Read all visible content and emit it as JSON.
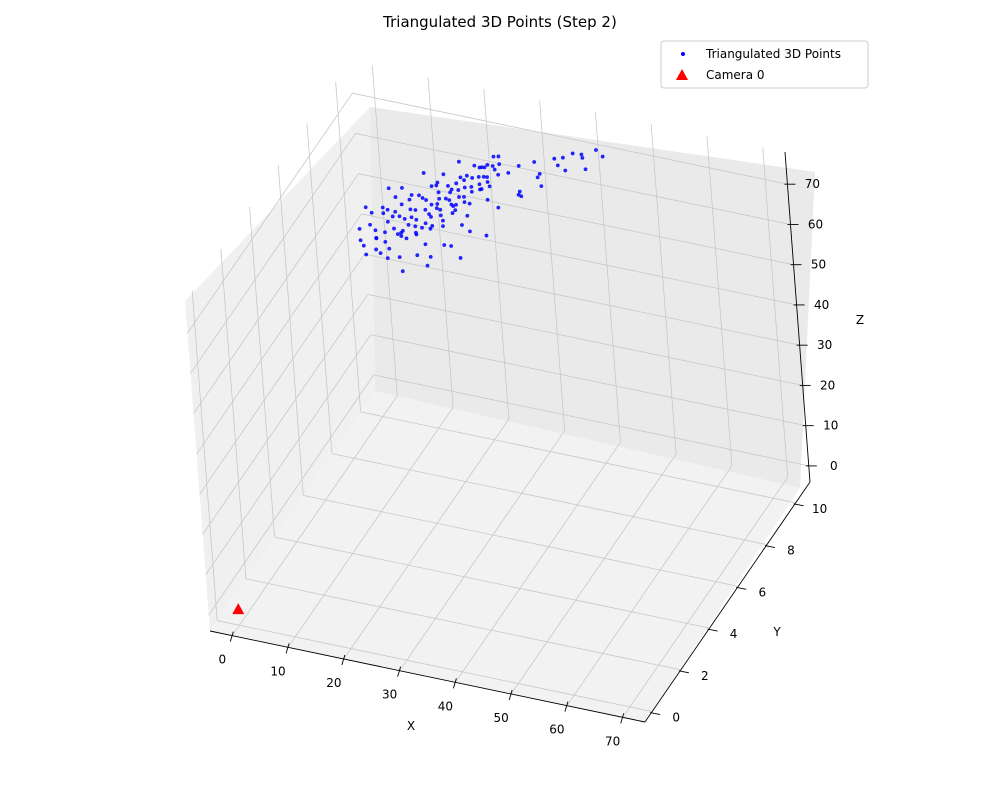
{
  "chart_data": {
    "type": "scatter",
    "projection": "3d",
    "title": "Triangulated 3D Points (Step 2)",
    "xlabel": "X",
    "ylabel": "Y",
    "zlabel": "Z",
    "xlim": [
      -4,
      74
    ],
    "ylim": [
      -0.5,
      11
    ],
    "zlim": [
      -4,
      78
    ],
    "xticks": [
      0,
      10,
      20,
      30,
      40,
      50,
      60,
      70
    ],
    "yticks": [
      0,
      2,
      4,
      6,
      8,
      10
    ],
    "zticks": [
      0,
      10,
      20,
      30,
      40,
      50,
      60,
      70
    ],
    "grid": true,
    "legend_position": "top-right",
    "series": [
      {
        "name": "Triangulated 3D Points",
        "color": "#0000ff",
        "marker": "point",
        "points": [
          [
            5.0,
            7.7,
            56.0
          ],
          [
            5.4,
            8.4,
            56.5
          ],
          [
            5.9,
            7.4,
            55.0
          ],
          [
            6.1,
            8.0,
            55.8
          ],
          [
            6.7,
            7.3,
            54.4
          ],
          [
            6.9,
            8.6,
            57.2
          ],
          [
            7.3,
            7.9,
            55.3
          ],
          [
            7.6,
            7.1,
            53.5
          ],
          [
            7.8,
            8.3,
            57.6
          ],
          [
            8.2,
            7.6,
            55.2
          ],
          [
            8.5,
            8.9,
            58.7
          ],
          [
            8.9,
            7.3,
            54.1
          ],
          [
            9.1,
            8.1,
            56.9
          ],
          [
            9.3,
            7.8,
            55.9
          ],
          [
            9.7,
            8.4,
            58.0
          ],
          [
            10.1,
            7.5,
            55.3
          ],
          [
            10.4,
            8.6,
            59.0
          ],
          [
            10.7,
            7.9,
            56.7
          ],
          [
            11.0,
            8.2,
            58.3
          ],
          [
            11.3,
            7.3,
            55.0
          ],
          [
            11.6,
            8.7,
            60.0
          ],
          [
            11.9,
            7.7,
            56.7
          ],
          [
            12.2,
            8.1,
            58.5
          ],
          [
            12.5,
            8.4,
            59.4
          ],
          [
            12.8,
            7.6,
            57.0
          ],
          [
            13.1,
            8.8,
            61.0
          ],
          [
            13.4,
            7.9,
            58.4
          ],
          [
            13.7,
            8.3,
            60.1
          ],
          [
            14.0,
            7.5,
            57.3
          ],
          [
            14.3,
            8.6,
            61.7
          ],
          [
            14.6,
            8.0,
            59.5
          ],
          [
            14.9,
            7.8,
            59.0
          ],
          [
            15.2,
            8.5,
            62.0
          ],
          [
            15.5,
            7.6,
            58.6
          ],
          [
            15.8,
            8.2,
            61.3
          ],
          [
            16.1,
            8.9,
            63.8
          ],
          [
            16.4,
            7.7,
            59.6
          ],
          [
            16.7,
            8.3,
            62.3
          ],
          [
            17.0,
            8.0,
            61.6
          ],
          [
            17.3,
            8.6,
            64.0
          ],
          [
            17.6,
            7.9,
            61.6
          ],
          [
            17.9,
            8.4,
            63.6
          ],
          [
            18.2,
            8.1,
            62.9
          ],
          [
            18.5,
            7.5,
            61.0
          ],
          [
            18.8,
            8.7,
            65.5
          ],
          [
            19.1,
            8.0,
            63.3
          ],
          [
            19.4,
            8.3,
            64.6
          ],
          [
            19.7,
            7.8,
            63.1
          ],
          [
            20.0,
            8.5,
            66.0
          ],
          [
            20.3,
            8.2,
            65.0
          ],
          [
            20.6,
            7.6,
            63.1
          ],
          [
            20.9,
            8.8,
            67.7
          ],
          [
            21.2,
            8.0,
            65.2
          ],
          [
            21.5,
            8.4,
            66.8
          ],
          [
            21.8,
            7.9,
            65.5
          ],
          [
            22.1,
            8.6,
            68.4
          ],
          [
            22.4,
            8.1,
            66.9
          ],
          [
            22.7,
            7.7,
            65.8
          ],
          [
            23.0,
            8.3,
            68.4
          ],
          [
            23.3,
            8.9,
            70.8
          ],
          [
            23.6,
            8.0,
            67.8
          ],
          [
            23.9,
            8.5,
            70.0
          ],
          [
            24.2,
            7.8,
            67.7
          ],
          [
            24.5,
            8.2,
            69.5
          ],
          [
            24.8,
            8.7,
            71.8
          ],
          [
            25.1,
            8.0,
            69.5
          ],
          [
            25.4,
            8.4,
            71.2
          ],
          [
            25.7,
            7.6,
            68.8
          ],
          [
            26.0,
            8.6,
            72.7
          ],
          [
            26.3,
            8.1,
            71.2
          ],
          [
            26.6,
            8.3,
            72.1
          ],
          [
            26.9,
            7.9,
            71.1
          ],
          [
            27.2,
            8.8,
            74.7
          ],
          [
            27.5,
            8.2,
            72.8
          ],
          [
            27.8,
            8.5,
            74.1
          ],
          [
            28.1,
            8.0,
            72.8
          ],
          [
            28.4,
            8.7,
            75.6
          ],
          [
            28.7,
            8.3,
            74.5
          ],
          [
            29.0,
            7.8,
            73.0
          ],
          [
            29.3,
            8.4,
            75.5
          ],
          [
            9.5,
            8.0,
            60.5
          ],
          [
            11.5,
            7.6,
            61.5
          ],
          [
            13.5,
            8.2,
            64.3
          ],
          [
            15.5,
            7.4,
            63.5
          ],
          [
            17.5,
            8.5,
            67.0
          ],
          [
            19.5,
            7.7,
            66.4
          ],
          [
            21.5,
            8.3,
            69.0
          ],
          [
            23.5,
            7.5,
            68.4
          ],
          [
            25.5,
            8.6,
            72.6
          ],
          [
            27.5,
            7.8,
            71.9
          ],
          [
            6.5,
            8.2,
            51.5
          ],
          [
            8.5,
            7.7,
            51.0
          ],
          [
            10.5,
            8.4,
            53.0
          ],
          [
            12.5,
            7.5,
            52.2
          ],
          [
            14.5,
            8.6,
            55.5
          ],
          [
            16.5,
            7.8,
            55.0
          ],
          [
            18.5,
            8.3,
            57.5
          ],
          [
            20.5,
            7.6,
            57.0
          ],
          [
            22.5,
            8.5,
            60.2
          ],
          [
            24.5,
            7.9,
            60.0
          ],
          [
            7.0,
            7.5,
            63.0
          ],
          [
            10.0,
            8.0,
            66.0
          ],
          [
            13.0,
            7.8,
            68.0
          ],
          [
            16.0,
            8.2,
            70.5
          ],
          [
            19.0,
            7.6,
            71.2
          ],
          [
            22.0,
            8.4,
            74.0
          ],
          [
            25.0,
            7.8,
            74.5
          ],
          [
            28.0,
            8.1,
            76.5
          ],
          [
            31.0,
            7.7,
            77.0
          ],
          [
            34.0,
            8.0,
            78.5
          ],
          [
            14.0,
            8.1,
            50.0
          ],
          [
            17.0,
            7.9,
            51.5
          ],
          [
            20.0,
            8.2,
            53.5
          ],
          [
            23.0,
            7.7,
            54.0
          ],
          [
            26.0,
            8.4,
            56.8
          ],
          [
            8.0,
            8.3,
            46.5
          ],
          [
            12.0,
            7.8,
            47.0
          ],
          [
            16.0,
            8.0,
            48.5
          ],
          [
            32.0,
            8.0,
            76.2
          ],
          [
            35.0,
            7.6,
            74.5
          ],
          [
            36.0,
            8.3,
            78.5
          ],
          [
            38.0,
            7.9,
            78.2
          ],
          [
            40.0,
            8.2,
            81.0
          ],
          [
            42.0,
            7.7,
            82.5
          ],
          [
            44.0,
            8.0,
            84.5
          ],
          [
            46.0,
            7.9,
            84.5
          ],
          [
            48.0,
            8.1,
            86.0
          ],
          [
            50.0,
            7.8,
            86.5
          ],
          [
            35.5,
            7.5,
            74.0
          ],
          [
            37.0,
            8.1,
            76.0
          ],
          [
            39.0,
            7.6,
            77.0
          ],
          [
            41.0,
            8.4,
            80.5
          ],
          [
            43.0,
            7.8,
            81.0
          ],
          [
            45.0,
            8.2,
            83.5
          ],
          [
            47.0,
            7.7,
            83.0
          ],
          [
            18.0,
            7.8,
            60.0
          ],
          [
            21.0,
            8.1,
            62.5
          ],
          [
            24.0,
            7.6,
            63.0
          ],
          [
            27.0,
            8.3,
            66.5
          ],
          [
            30.0,
            7.9,
            67.5
          ],
          [
            33.0,
            8.2,
            70.0
          ],
          [
            19.0,
            8.4,
            70.0
          ],
          [
            22.0,
            7.7,
            70.0
          ],
          [
            12.0,
            8.0,
            56.0
          ],
          [
            15.0,
            7.8,
            57.0
          ]
        ]
      },
      {
        "name": "Camera 0",
        "color": "#ff0000",
        "marker": "triangle",
        "points": [
          [
            0,
            0,
            0
          ]
        ]
      }
    ]
  }
}
